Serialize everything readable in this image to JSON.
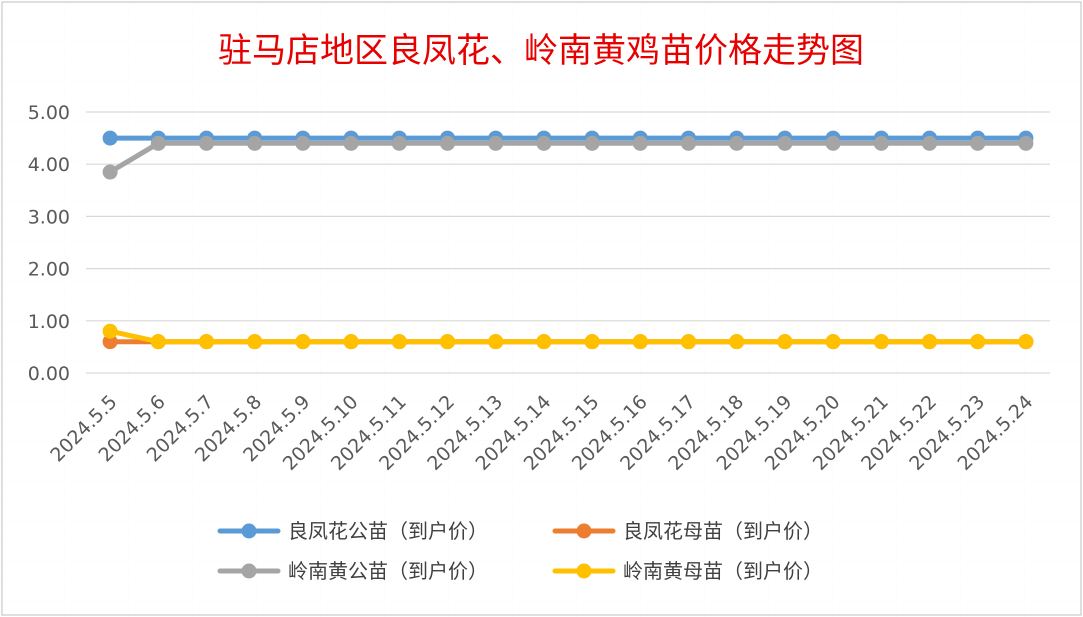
{
  "chart_data": {
    "type": "line",
    "title": "驻马店地区良凤花、岭南黄鸡苗价格走势图",
    "xlabel": "",
    "ylabel": "",
    "ylim": [
      0,
      5
    ],
    "yticks": [
      "0.00",
      "1.00",
      "2.00",
      "3.00",
      "4.00",
      "5.00"
    ],
    "grid": true,
    "legend_position": "bottom",
    "categories": [
      "2024.5.5",
      "2024.5.6",
      "2024.5.7",
      "2024.5.8",
      "2024.5.9",
      "2024.5.10",
      "2024.5.11",
      "2024.5.12",
      "2024.5.13",
      "2024.5.14",
      "2024.5.15",
      "2024.5.16",
      "2024.5.17",
      "2024.5.18",
      "2024.5.19",
      "2024.5.20",
      "2024.5.21",
      "2024.5.22",
      "2024.5.23",
      "2024.5.24"
    ],
    "series": [
      {
        "name": "良凤花公苗（到户价）",
        "color": "#5b9bd5",
        "values": [
          4.5,
          4.5,
          4.5,
          4.5,
          4.5,
          4.5,
          4.5,
          4.5,
          4.5,
          4.5,
          4.5,
          4.5,
          4.5,
          4.5,
          4.5,
          4.5,
          4.5,
          4.5,
          4.5,
          4.5
        ]
      },
      {
        "name": "良凤花母苗（到户价）",
        "color": "#ed7d31",
        "values": [
          0.6,
          0.6,
          0.6,
          0.6,
          0.6,
          0.6,
          0.6,
          0.6,
          0.6,
          0.6,
          0.6,
          0.6,
          0.6,
          0.6,
          0.6,
          0.6,
          0.6,
          0.6,
          0.6,
          0.6
        ]
      },
      {
        "name": "岭南黄公苗（到户价）",
        "color": "#a5a5a5",
        "values": [
          3.85,
          4.4,
          4.4,
          4.4,
          4.4,
          4.4,
          4.4,
          4.4,
          4.4,
          4.4,
          4.4,
          4.4,
          4.4,
          4.4,
          4.4,
          4.4,
          4.4,
          4.4,
          4.4,
          4.4
        ]
      },
      {
        "name": "岭南黄母苗（到户价）",
        "color": "#ffc000",
        "values": [
          0.8,
          0.6,
          0.6,
          0.6,
          0.6,
          0.6,
          0.6,
          0.6,
          0.6,
          0.6,
          0.6,
          0.6,
          0.6,
          0.6,
          0.6,
          0.6,
          0.6,
          0.6,
          0.6,
          0.6
        ]
      }
    ]
  }
}
